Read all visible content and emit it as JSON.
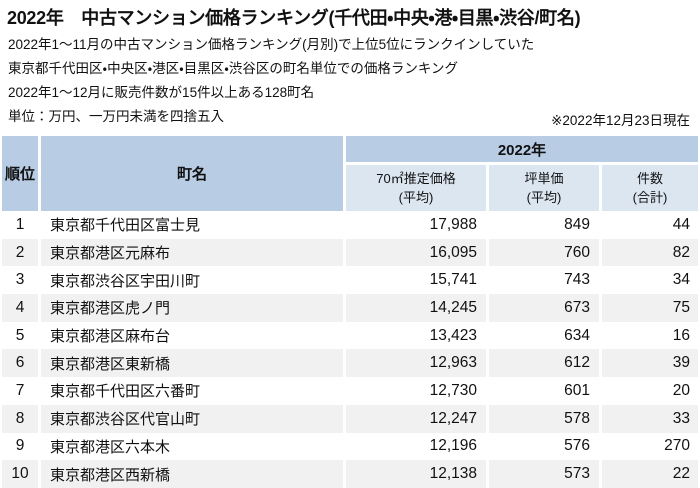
{
  "page": {
    "title": "2022年　中古マンション価格ランキング(千代田・中央・港・目黒・渋谷/町名)",
    "description_lines": [
      "2022年1～11月の中古マンション価格ランキング(月別)で上位5位にランクインしていた",
      "東京都千代田区・中央区・港区・目黒区・渋谷区の町名単位での価格ランキング",
      "2022年1～12月に販売件数が15件以上ある128町名",
      "単位：万円、一万円未満を四捨五入"
    ],
    "date_note": "※2022年12月23日現在"
  },
  "table": {
    "headers": {
      "rank": "順位",
      "town": "町名",
      "year_group": "2022年",
      "columns": [
        {
          "line1": "70㎡推定価格",
          "line2": "(平均)"
        },
        {
          "line1": "坪単価",
          "line2": "(平均)"
        },
        {
          "line1": "件数",
          "line2": "(合計)"
        }
      ]
    },
    "rows": [
      {
        "rank": "1",
        "town": "東京都千代田区富士見",
        "price": "17,988",
        "tsubo": "849",
        "count": "44"
      },
      {
        "rank": "2",
        "town": "東京都港区元麻布",
        "price": "16,095",
        "tsubo": "760",
        "count": "82"
      },
      {
        "rank": "3",
        "town": "東京都渋谷区宇田川町",
        "price": "15,741",
        "tsubo": "743",
        "count": "34"
      },
      {
        "rank": "4",
        "town": "東京都港区虎ノ門",
        "price": "14,245",
        "tsubo": "673",
        "count": "75"
      },
      {
        "rank": "5",
        "town": "東京都港区麻布台",
        "price": "13,423",
        "tsubo": "634",
        "count": "16"
      },
      {
        "rank": "6",
        "town": "東京都港区東新橋",
        "price": "12,963",
        "tsubo": "612",
        "count": "39"
      },
      {
        "rank": "7",
        "town": "東京都千代田区六番町",
        "price": "12,730",
        "tsubo": "601",
        "count": "20"
      },
      {
        "rank": "8",
        "town": "東京都渋谷区代官山町",
        "price": "12,247",
        "tsubo": "578",
        "count": "33"
      },
      {
        "rank": "9",
        "town": "東京都港区六本木",
        "price": "12,196",
        "tsubo": "576",
        "count": "270"
      },
      {
        "rank": "10",
        "town": "東京都港区西新橋",
        "price": "12,138",
        "tsubo": "573",
        "count": "22"
      }
    ]
  },
  "colors": {
    "header_blue": "#b8cce4",
    "subheader_blue": "#dce6f1",
    "row_alt_gray": "#f1f1f1",
    "text": "#111111"
  },
  "chart_data": {
    "type": "table",
    "title": "2022年　中古マンション価格ランキング(千代田・中央・港・目黒・渋谷/町名)",
    "notes": [
      "2022年1～11月の中古マンション価格ランキング(月別)で上位5位にランクインしていた",
      "東京都千代田区・中央区・港区・目黒区・渋谷区の町名単位での価格ランキング",
      "2022年1～12月に販売件数が15件以上ある128町名",
      "単位：万円、一万円未満を四捨五入",
      "※2022年12月23日現在"
    ],
    "columns": [
      "順位",
      "町名",
      "2022年 70㎡推定価格(平均)",
      "2022年 坪単価(平均)",
      "2022年 件数(合計)"
    ],
    "rows": [
      [
        1,
        "東京都千代田区富士見",
        17988,
        849,
        44
      ],
      [
        2,
        "東京都港区元麻布",
        16095,
        760,
        82
      ],
      [
        3,
        "東京都渋谷区宇田川町",
        15741,
        743,
        34
      ],
      [
        4,
        "東京都港区虎ノ門",
        14245,
        673,
        75
      ],
      [
        5,
        "東京都港区麻布台",
        13423,
        634,
        16
      ],
      [
        6,
        "東京都港区東新橋",
        12963,
        612,
        39
      ],
      [
        7,
        "東京都千代田区六番町",
        12730,
        601,
        20
      ],
      [
        8,
        "東京都渋谷区代官山町",
        12247,
        578,
        33
      ],
      [
        9,
        "東京都港区六本木",
        12196,
        576,
        270
      ],
      [
        10,
        "東京都港区西新橋",
        12138,
        573,
        22
      ]
    ]
  }
}
